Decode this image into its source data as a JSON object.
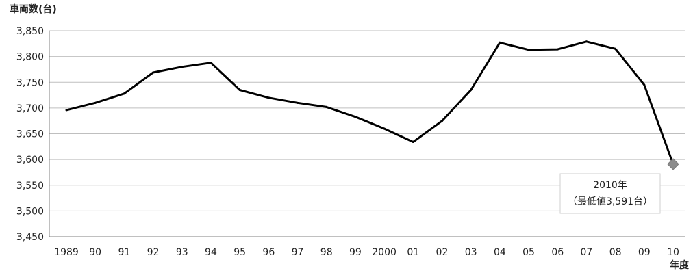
{
  "chart_data": {
    "type": "line",
    "ylabel": "車両数(台)",
    "xlabel": "年度",
    "ylim": [
      3450,
      3850
    ],
    "yticks": [
      3450,
      3500,
      3550,
      3600,
      3650,
      3700,
      3750,
      3800,
      3850
    ],
    "ytick_labels": [
      "3,450",
      "3,500",
      "3,550",
      "3,600",
      "3,650",
      "3,700",
      "3,750",
      "3,800",
      "3,850"
    ],
    "categories": [
      "1989",
      "90",
      "91",
      "92",
      "93",
      "94",
      "95",
      "96",
      "97",
      "98",
      "99",
      "2000",
      "01",
      "02",
      "03",
      "04",
      "05",
      "06",
      "07",
      "08",
      "09",
      "10"
    ],
    "series": [
      {
        "values": [
          3696,
          3710,
          3728,
          3769,
          3780,
          3788,
          3735,
          3720,
          3710,
          3702,
          3683,
          3660,
          3634,
          3675,
          3735,
          3827,
          3813,
          3814,
          3829,
          3815,
          3745,
          3591
        ]
      }
    ],
    "grid": true,
    "colors": {
      "line": "#000000",
      "grid": "#bfbfbf",
      "marker": "#8c8c8c"
    },
    "annotation": {
      "line1": "2010年",
      "line2": "（最低値3,591台）"
    }
  }
}
